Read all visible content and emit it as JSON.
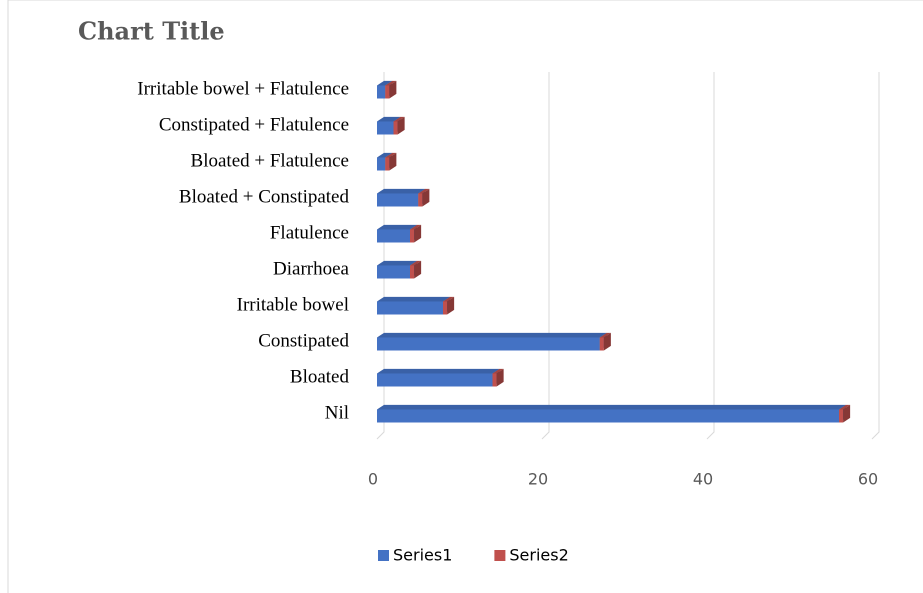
{
  "chart_data": {
    "type": "bar3d_stacked_horizontal",
    "title": "Chart Title",
    "categories": [
      "Nil",
      "Bloated",
      "Constipated",
      "Irritable bowel",
      "Diarrhoea",
      "Flatulence",
      "Bloated + Constipated",
      "Bloated + Flatulence",
      "Constipated + Flatulence",
      "Irritable bowel + Flatulence"
    ],
    "series": [
      {
        "name": "Series1",
        "color": "#4472c4",
        "values": [
          56,
          14,
          27,
          8,
          4,
          4,
          5,
          1,
          2,
          1
        ]
      },
      {
        "name": "Series2",
        "color": "#c0504d",
        "values": [
          0.5,
          0.5,
          0.5,
          0.5,
          0.5,
          0.5,
          0.5,
          0.5,
          0.5,
          0.5
        ]
      }
    ],
    "xlim": [
      0,
      60
    ],
    "xticks": [
      0,
      20,
      40,
      60
    ],
    "grid": true,
    "legend": "bottom"
  }
}
